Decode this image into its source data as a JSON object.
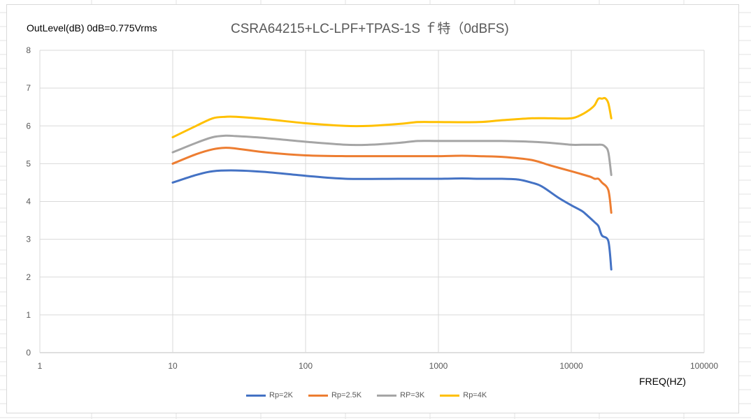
{
  "chart_data": {
    "type": "line",
    "title": "CSRA64215+LC-LPF+TPAS-1S ｆ特（0dBFS)",
    "ylabel": "OutLevel(dB) 0dB=0.775Vrms",
    "xlabel": "FREQ(HZ)",
    "x_scale": "log",
    "xlim": [
      1,
      100000
    ],
    "ylim": [
      0,
      8
    ],
    "x_ticks": [
      "1",
      "10",
      "100",
      "1000",
      "10000",
      "100000"
    ],
    "y_ticks": [
      "0",
      "1",
      "2",
      "3",
      "4",
      "5",
      "6",
      "7",
      "8"
    ],
    "grid": true,
    "legend_position": "bottom",
    "series": [
      {
        "name": "Rp=2K",
        "color": "#4472C4",
        "points": [
          [
            10,
            4.5
          ],
          [
            15,
            4.7
          ],
          [
            20,
            4.8
          ],
          [
            30,
            4.82
          ],
          [
            50,
            4.78
          ],
          [
            100,
            4.68
          ],
          [
            200,
            4.6
          ],
          [
            500,
            4.6
          ],
          [
            1000,
            4.6
          ],
          [
            1500,
            4.61
          ],
          [
            2000,
            4.6
          ],
          [
            3000,
            4.6
          ],
          [
            4000,
            4.58
          ],
          [
            5000,
            4.5
          ],
          [
            6000,
            4.4
          ],
          [
            8000,
            4.1
          ],
          [
            10000,
            3.9
          ],
          [
            12000,
            3.75
          ],
          [
            13000,
            3.65
          ],
          [
            15000,
            3.45
          ],
          [
            16000,
            3.35
          ],
          [
            17000,
            3.1
          ],
          [
            19000,
            2.95
          ],
          [
            20000,
            2.2
          ]
        ]
      },
      {
        "name": "Rp=2.5K",
        "color": "#ED7D31",
        "points": [
          [
            10,
            5.0
          ],
          [
            15,
            5.25
          ],
          [
            20,
            5.38
          ],
          [
            25,
            5.42
          ],
          [
            30,
            5.4
          ],
          [
            50,
            5.3
          ],
          [
            100,
            5.22
          ],
          [
            200,
            5.2
          ],
          [
            500,
            5.2
          ],
          [
            1000,
            5.2
          ],
          [
            1500,
            5.21
          ],
          [
            2000,
            5.2
          ],
          [
            3000,
            5.18
          ],
          [
            5000,
            5.1
          ],
          [
            7000,
            4.95
          ],
          [
            10000,
            4.8
          ],
          [
            12000,
            4.72
          ],
          [
            14000,
            4.65
          ],
          [
            15000,
            4.6
          ],
          [
            16000,
            4.6
          ],
          [
            17000,
            4.5
          ],
          [
            19000,
            4.3
          ],
          [
            20000,
            3.7
          ]
        ]
      },
      {
        "name": "RP=3K",
        "color": "#A5A5A5",
        "points": [
          [
            10,
            5.3
          ],
          [
            15,
            5.55
          ],
          [
            20,
            5.7
          ],
          [
            25,
            5.74
          ],
          [
            30,
            5.73
          ],
          [
            50,
            5.68
          ],
          [
            100,
            5.58
          ],
          [
            200,
            5.5
          ],
          [
            300,
            5.5
          ],
          [
            500,
            5.55
          ],
          [
            700,
            5.6
          ],
          [
            1000,
            5.6
          ],
          [
            2000,
            5.6
          ],
          [
            3000,
            5.6
          ],
          [
            5000,
            5.58
          ],
          [
            7000,
            5.55
          ],
          [
            10000,
            5.5
          ],
          [
            12000,
            5.5
          ],
          [
            15000,
            5.5
          ],
          [
            17000,
            5.5
          ],
          [
            18000,
            5.45
          ],
          [
            19000,
            5.3
          ],
          [
            20000,
            4.7
          ]
        ]
      },
      {
        "name": "Rp=4K",
        "color": "#FFC000",
        "points": [
          [
            10,
            5.7
          ],
          [
            15,
            6.0
          ],
          [
            20,
            6.2
          ],
          [
            25,
            6.24
          ],
          [
            30,
            6.24
          ],
          [
            50,
            6.18
          ],
          [
            100,
            6.07
          ],
          [
            200,
            6.0
          ],
          [
            300,
            6.0
          ],
          [
            500,
            6.05
          ],
          [
            700,
            6.1
          ],
          [
            1000,
            6.1
          ],
          [
            2000,
            6.1
          ],
          [
            3000,
            6.15
          ],
          [
            5000,
            6.2
          ],
          [
            7000,
            6.2
          ],
          [
            10000,
            6.2
          ],
          [
            12000,
            6.3
          ],
          [
            14000,
            6.45
          ],
          [
            15000,
            6.55
          ],
          [
            16000,
            6.72
          ],
          [
            17000,
            6.72
          ],
          [
            18000,
            6.73
          ],
          [
            19000,
            6.6
          ],
          [
            20000,
            6.2
          ]
        ]
      }
    ]
  }
}
